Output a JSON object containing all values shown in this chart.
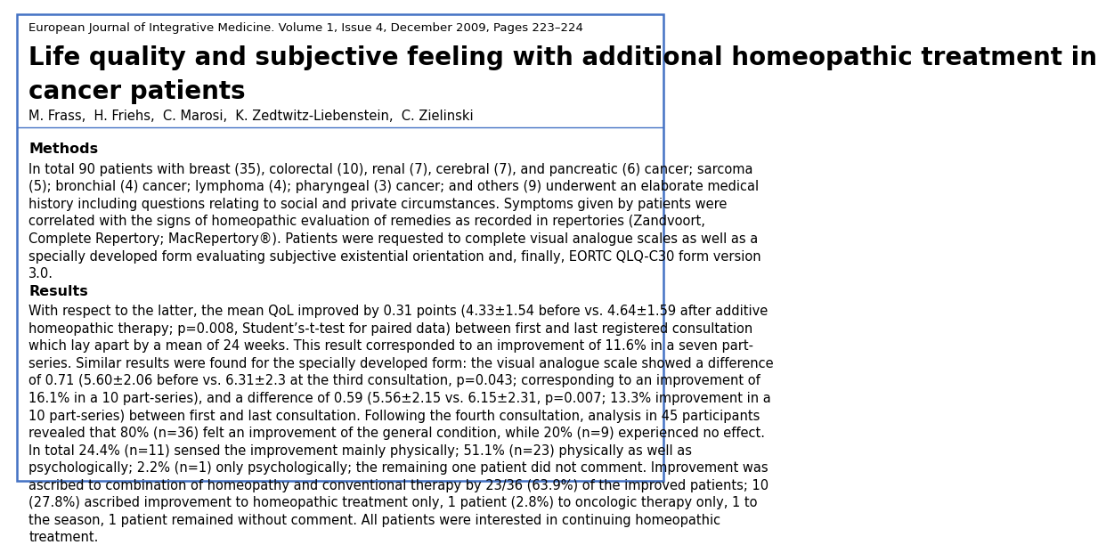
{
  "journal_line": "European Journal of Integrative Medicine. Volume 1, Issue 4, December 2009, Pages 223–224",
  "title_line1": "Life quality and subjective feeling with additional homeopathic treatment in",
  "title_line2": "cancer patients",
  "authors": "M. Frass,  H. Friehs,  C. Marosi,  K. Zedtwitz-Liebenstein,  C. Zielinski",
  "methods_header": "Methods",
  "methods_text": "In total 90 patients with breast (35), colorectal (10), renal (7), cerebral (7), and pancreatic (6) cancer; sarcoma\n(5); bronchial (4) cancer; lymphoma (4); pharyngeal (3) cancer; and others (9) underwent an elaborate medical\nhistory including questions relating to social and private circumstances. Symptoms given by patients were\ncorrelated with the signs of homeopathic evaluation of remedies as recorded in repertories (Zandvoort,\nComplete Repertory; MacRepertory®). Patients were requested to complete visual analogue scales as well as a\nspecially developed form evaluating subjective existential orientation and, finally, EORTC QLQ-C30 form version\n3.0.",
  "results_header": "Results",
  "results_text": "With respect to the latter, the mean QoL improved by 0.31 points (4.33±1.54 before vs. 4.64±1.59 after additive\nhomeopathic therapy; p=0.008, Student’s-t-test for paired data) between first and last registered consultation\nwhich lay apart by a mean of 24 weeks. This result corresponded to an improvement of 11.6% in a seven part-\nseries. Similar results were found for the specially developed form: the visual analogue scale showed a difference\nof 0.71 (5.60±2.06 before vs. 6.31±2.3 at the third consultation, p=0.043; corresponding to an improvement of\n16.1% in a 10 part-series), and a difference of 0.59 (5.56±2.15 vs. 6.15±2.31, p=0.007; 13.3% improvement in a\n10 part-series) between first and last consultation. Following the fourth consultation, analysis in 45 participants\nrevealed that 80% (n=36) felt an improvement of the general condition, while 20% (n=9) experienced no effect.\nIn total 24.4% (n=11) sensed the improvement mainly physically; 51.1% (n=23) physically as well as\npsychologically; 2.2% (n=1) only psychologically; the remaining one patient did not comment. Improvement was\nascribed to combination of homeopathy and conventional therapy by 23/36 (63.9%) of the improved patients; 10\n(27.8%) ascribed improvement to homeopathic treatment only, 1 patient (2.8%) to oncologic therapy only, 1 to\nthe season, 1 patient remained without comment. All patients were interested in continuing homeopathic\ntreatment.",
  "bg_color": "#ffffff",
  "border_color": "#4472c4",
  "text_color": "#000000",
  "journal_fontsize": 9.5,
  "title_fontsize": 20,
  "authors_fontsize": 10.5,
  "section_header_fontsize": 11.5,
  "body_fontsize": 10.5
}
